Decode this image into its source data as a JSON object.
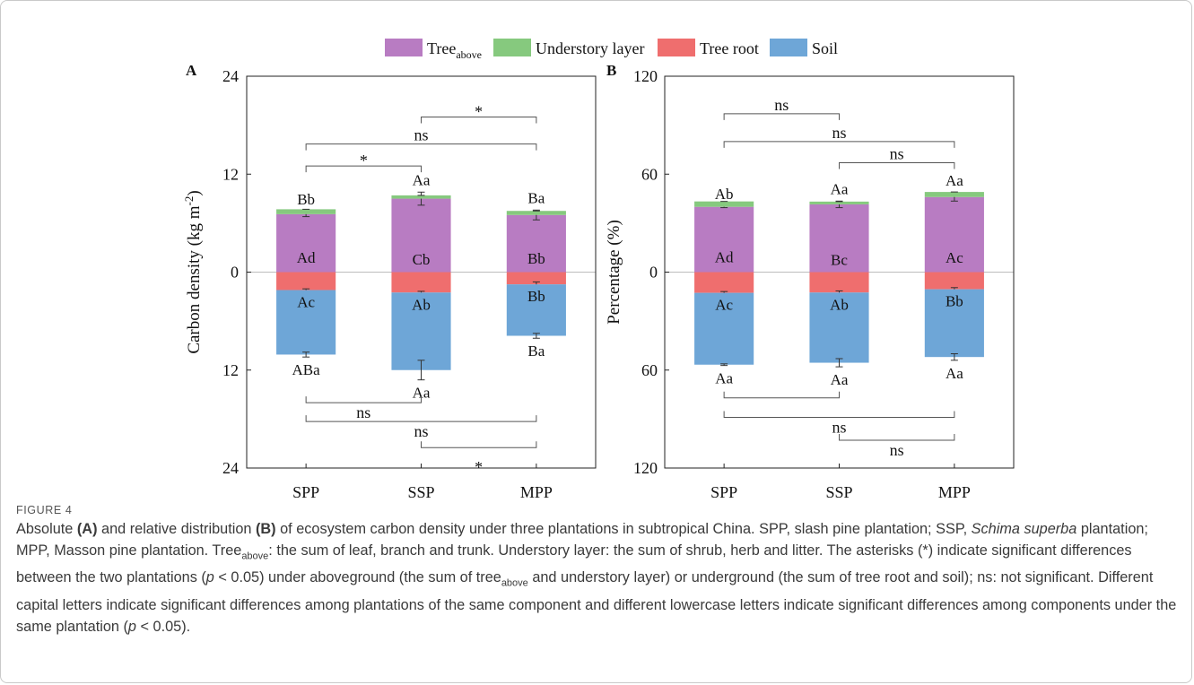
{
  "legend": [
    {
      "name": "Tree",
      "sub": "above",
      "color": "#b87cc2"
    },
    {
      "name": "Understory layer",
      "sub": "",
      "color": "#86c97e"
    },
    {
      "name": "Tree root",
      "sub": "",
      "color": "#ef6e6e"
    },
    {
      "name": "Soil",
      "sub": "",
      "color": "#6ea6d7"
    }
  ],
  "chart_data": [
    {
      "type": "bar",
      "panel": "A",
      "ylabel": "Carbon density (kg m",
      "ylabel_sup": "-2",
      "ylabel_end": ")",
      "yticks": [
        24,
        12,
        0,
        12,
        24
      ],
      "ylim": [
        -24,
        24
      ],
      "categories": [
        "SPP",
        "SSP",
        "MPP"
      ],
      "series": [
        {
          "name": "Treeabove",
          "direction": "up",
          "values": [
            7.1,
            9.0,
            7.0
          ],
          "err": [
            0.3,
            0.8,
            0.6
          ]
        },
        {
          "name": "Understory layer",
          "direction": "up",
          "values": [
            0.6,
            0.4,
            0.5
          ],
          "err": [
            0,
            0,
            0
          ]
        },
        {
          "name": "Tree root",
          "direction": "down",
          "values": [
            2.2,
            2.5,
            1.5
          ],
          "err": [
            0.15,
            0.15,
            0.3
          ]
        },
        {
          "name": "Soil",
          "direction": "down",
          "values": [
            7.9,
            9.5,
            6.3
          ],
          "err": [
            0.3,
            1.2,
            0.3
          ]
        }
      ],
      "top_labels": [
        "Bb",
        "Aa",
        "Ba"
      ],
      "understory_labels": [
        "Ad",
        "Cb",
        "Bb"
      ],
      "root_labels": [
        "Ac",
        "Ab",
        "Bb"
      ],
      "soil_labels": [
        "ABa",
        "Aa",
        "Ba"
      ],
      "brackets_top": [
        {
          "from": 1,
          "to": 2,
          "y": 19,
          "label": "*"
        },
        {
          "from": 0,
          "to": 2,
          "y": 15.7,
          "label": "ns"
        },
        {
          "from": 0,
          "to": 1,
          "y": 13,
          "label": "*"
        }
      ],
      "brackets_bottom": [
        {
          "from": 0,
          "to": 1,
          "y": -16,
          "label": "ns"
        },
        {
          "from": 0,
          "to": 2,
          "y": -18.3,
          "label": "ns"
        },
        {
          "from": 1,
          "to": 2,
          "y": -21.5,
          "label": "*"
        }
      ]
    },
    {
      "type": "bar",
      "panel": "B",
      "ylabel": "Percentage (%)",
      "ylabel_sup": "",
      "ylabel_end": "",
      "yticks": [
        120,
        60,
        0,
        60,
        120
      ],
      "ylim": [
        -120,
        120
      ],
      "categories": [
        "SPP",
        "SSP",
        "MPP"
      ],
      "series": [
        {
          "name": "Treeabove",
          "direction": "up",
          "values": [
            40,
            41.5,
            46
          ],
          "err": [
            0.5,
            2,
            2.5
          ]
        },
        {
          "name": "Understory layer",
          "direction": "up",
          "values": [
            3.3,
            1.7,
            3.1
          ],
          "err": [
            0,
            0,
            0
          ]
        },
        {
          "name": "Tree root",
          "direction": "down",
          "values": [
            12.7,
            12.5,
            10.5
          ],
          "err": [
            0.8,
            1,
            1
          ]
        },
        {
          "name": "Soil",
          "direction": "down",
          "values": [
            44,
            43,
            41.5
          ],
          "err": [
            0.5,
            2.5,
            2
          ]
        }
      ],
      "top_labels": [
        "Ab",
        "Aa",
        "Aa"
      ],
      "understory_labels": [
        "Ad",
        "Bc",
        "Ac"
      ],
      "root_labels": [
        "Ac",
        "Ab",
        "Bb"
      ],
      "soil_labels": [
        "Aa",
        "Aa",
        "Aa"
      ],
      "brackets_top": [
        {
          "from": 0,
          "to": 1,
          "y": 97,
          "label": "ns"
        },
        {
          "from": 0,
          "to": 2,
          "y": 80,
          "label": "ns"
        },
        {
          "from": 1,
          "to": 2,
          "y": 67,
          "label": "ns"
        }
      ],
      "brackets_bottom": [
        {
          "from": 0,
          "to": 1,
          "y": -77,
          "label": ""
        },
        {
          "from": 0,
          "to": 2,
          "y": -89,
          "label": "ns"
        },
        {
          "from": 1,
          "to": 2,
          "y": -103,
          "label": "ns"
        }
      ]
    }
  ],
  "caption": {
    "label": "FIGURE 4",
    "text_parts": [
      "Absolute ",
      "(A)",
      " and relative distribution ",
      "(B)",
      " of ecosystem carbon density under three plantations in subtropical China. SPP, slash pine plantation; SSP, ",
      "Schima superba",
      " plantation; MPP, Masson pine plantation. Tree",
      "above",
      ": the sum of leaf, branch and trunk. Understory layer: the sum of shrub, herb and litter. The asterisks (*) indicate significant differences between the two plantations (",
      "p",
      " < 0.05) under aboveground (the sum of tree",
      "above",
      " and understory layer) or underground (the sum of tree root and soil); ns: not significant. Different capital letters indicate significant differences among plantations of the same component and different lowercase letters indicate significant differences among components under the same plantation (",
      "p",
      " < 0.05)."
    ]
  }
}
